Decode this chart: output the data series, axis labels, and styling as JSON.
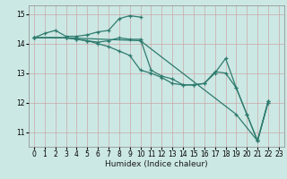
{
  "title": "",
  "xlabel": "Humidex (Indice chaleur)",
  "bg_color": "#cce8e4",
  "line_color": "#2e7b6e",
  "grid_color": "#b0d8d4",
  "xlim": [
    -0.5,
    23.5
  ],
  "ylim": [
    10.5,
    15.3
  ],
  "yticks": [
    11,
    12,
    13,
    14,
    15
  ],
  "xticks": [
    0,
    1,
    2,
    3,
    4,
    5,
    6,
    7,
    8,
    9,
    10,
    11,
    12,
    13,
    14,
    15,
    16,
    17,
    18,
    19,
    20,
    21,
    22,
    23
  ],
  "lines": [
    {
      "x": [
        0,
        1,
        2,
        3,
        4,
        5,
        6,
        7,
        8,
        9,
        10
      ],
      "y": [
        14.2,
        14.35,
        14.45,
        14.25,
        14.25,
        14.3,
        14.4,
        14.45,
        14.85,
        14.95,
        14.9
      ]
    },
    {
      "x": [
        0,
        3,
        4,
        5,
        6,
        7,
        8,
        9,
        10,
        11,
        12,
        13,
        14,
        15,
        16,
        17,
        18,
        19,
        20,
        21,
        22
      ],
      "y": [
        14.2,
        14.2,
        14.15,
        14.1,
        14.05,
        14.1,
        14.2,
        14.15,
        14.15,
        13.1,
        12.9,
        12.8,
        12.6,
        12.6,
        12.65,
        13.05,
        13.0,
        12.5,
        11.6,
        10.7,
        12.05
      ]
    },
    {
      "x": [
        0,
        3,
        4,
        5,
        6,
        7,
        8,
        9,
        10,
        11,
        12,
        13,
        14,
        15,
        16,
        17,
        18,
        19,
        20,
        21,
        22
      ],
      "y": [
        14.2,
        14.2,
        14.15,
        14.1,
        14.0,
        13.9,
        13.75,
        13.6,
        13.1,
        13.0,
        12.85,
        12.65,
        12.6,
        12.6,
        12.65,
        13.0,
        13.5,
        12.5,
        11.6,
        10.7,
        12.05
      ]
    },
    {
      "x": [
        0,
        3,
        10,
        19,
        21,
        22
      ],
      "y": [
        14.2,
        14.2,
        14.1,
        11.6,
        10.7,
        12.0
      ]
    }
  ]
}
